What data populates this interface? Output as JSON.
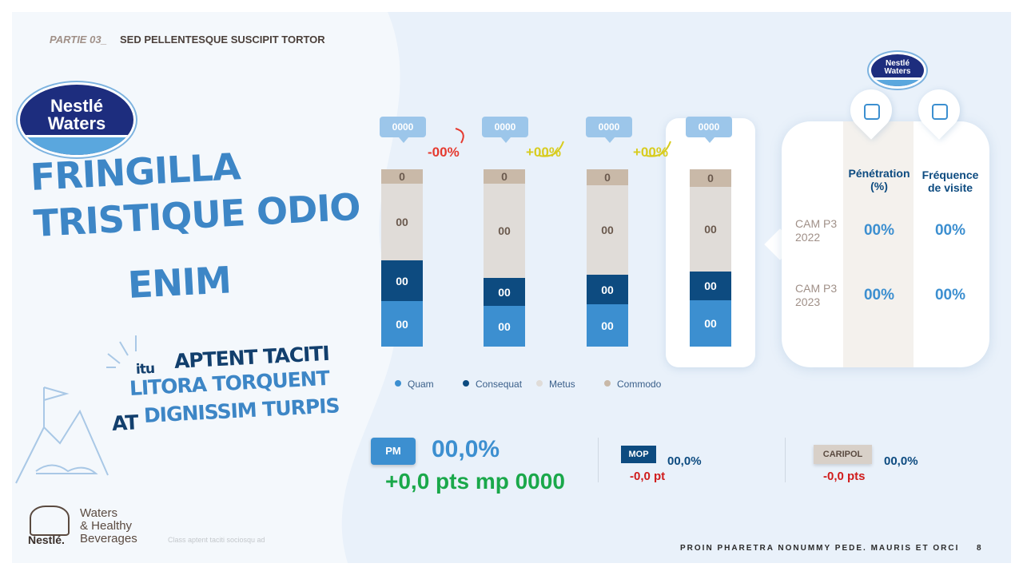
{
  "header": {
    "section": "PARTIE 03_",
    "title": "SED PELLENTESQUE SUSCIPIT TORTOR"
  },
  "logo": {
    "line1": "Nestlé",
    "line2": "Waters"
  },
  "headline": [
    "FRINGILLA",
    "TRISTIQUE ODIO",
    "ENIM"
  ],
  "tagline": {
    "prefix": "itu",
    "line1": "APTENT TACITI",
    "line2": "LITORA TORQUENT",
    "line3_prefix": "AT",
    "line3": "DIGNISSIM TURPIS"
  },
  "bars": [
    {
      "callout": "0000",
      "segments": [
        "00",
        "00",
        "00",
        "0"
      ]
    },
    {
      "callout": "0000",
      "segments": [
        "00",
        "00",
        "00",
        "0"
      ]
    },
    {
      "callout": "0000",
      "segments": [
        "00",
        "00",
        "00",
        "0"
      ]
    },
    {
      "callout": "0000",
      "segments": [
        "00",
        "00",
        "00",
        "0"
      ]
    }
  ],
  "changes": [
    "-00%",
    "+00%",
    "+00%"
  ],
  "legend": [
    "Quam",
    "Consequat",
    "Metus",
    "Commodo"
  ],
  "panel": {
    "logo": {
      "line1": "Nestlé",
      "line2": "Waters"
    },
    "columns": [
      "Pénétration (%)",
      "Fréquence de visite"
    ],
    "rows": [
      {
        "label": "CAM P3 2022",
        "values": [
          "00%",
          "00%"
        ]
      },
      {
        "label": "CAM P3 2023",
        "values": [
          "00%",
          "00%"
        ]
      }
    ]
  },
  "kpis": [
    {
      "badge": "PM",
      "value": "00,0%",
      "delta": "+0,0 pts mp 0000"
    },
    {
      "badge": "MOP",
      "value": "00,0%",
      "delta": "-0,0 pt"
    },
    {
      "badge": "CARIPOL",
      "value": "00,0%",
      "delta": "-0,0 pts"
    }
  ],
  "footer": {
    "brand": [
      "Waters",
      "& Healthy",
      "Beverages"
    ],
    "nestle": "Nestlé.",
    "note": "Class aptent taciti sociosqu ad",
    "tagline": "PROIN PHARETRA NONUMMY PEDE. MAURIS ET ORCI",
    "page": "8"
  }
}
